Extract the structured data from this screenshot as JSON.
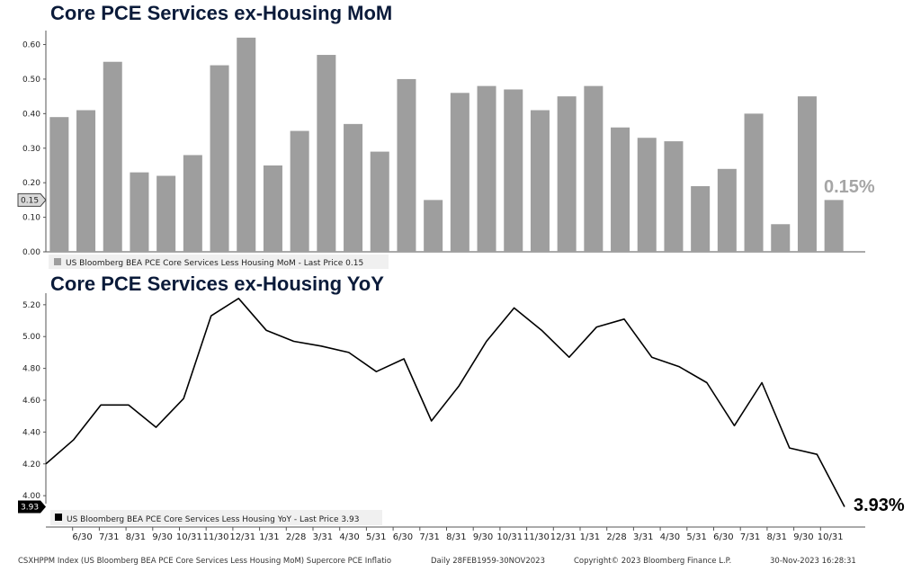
{
  "chart_data": [
    {
      "type": "bar",
      "title": "Core PCE Services ex-Housing MoM",
      "ylim": [
        0,
        0.63
      ],
      "yticks": [
        "0.00",
        "0.10",
        "0.20",
        "0.30",
        "0.40",
        "0.50",
        "0.60"
      ],
      "values": [
        0.39,
        0.41,
        0.55,
        0.23,
        0.22,
        0.28,
        0.54,
        0.62,
        0.25,
        0.35,
        0.57,
        0.37,
        0.29,
        0.5,
        0.15,
        0.46,
        0.48,
        0.47,
        0.41,
        0.45,
        0.48,
        0.36,
        0.33,
        0.32,
        0.19,
        0.24,
        0.4,
        0.08,
        0.45,
        0.15
      ],
      "color": "#9e9e9e",
      "legend": "US Bloomberg BEA PCE Core Services Less Housing MoM - Last Price 0.15",
      "last_price_tag": "0.15",
      "annotation": "0.15%",
      "grid": false
    },
    {
      "type": "line",
      "title": "Core PCE Services ex-Housing YoY",
      "ylim": [
        3.95,
        5.25
      ],
      "yticks": [
        "4.00",
        "4.20",
        "4.40",
        "4.60",
        "4.80",
        "5.00",
        "5.20"
      ],
      "values": [
        4.2,
        4.35,
        4.57,
        4.57,
        4.43,
        4.61,
        5.13,
        5.24,
        5.04,
        4.97,
        4.94,
        4.9,
        4.78,
        4.86,
        4.47,
        4.69,
        4.97,
        5.18,
        5.04,
        4.87,
        5.06,
        5.11,
        4.87,
        4.81,
        4.71,
        4.44,
        4.71,
        4.3,
        4.26,
        3.93
      ],
      "color": "#000000",
      "legend": "US Bloomberg BEA PCE Core Services Less Housing YoY - Last Price 3.93",
      "last_price_tag": "3.93",
      "annotation": "3.93%",
      "grid": false
    }
  ],
  "x_tick_labels": [
    "6/30",
    "7/31",
    "8/31",
    "9/30",
    "10/31",
    "11/30",
    "12/31",
    "1/31",
    "2/28",
    "3/31",
    "4/30",
    "5/31",
    "6/30",
    "7/31",
    "8/31",
    "9/30",
    "10/31",
    "11/30",
    "12/31",
    "1/31",
    "2/28",
    "3/31",
    "4/30",
    "5/31",
    "6/30",
    "7/31",
    "8/31",
    "9/30",
    "10/31"
  ],
  "footer": {
    "index_text": "CSXHPPM Index (US Bloomberg BEA PCE Core Services Less Housing MoM) Supercore PCE Inflatio",
    "range_text": "Daily 28FEB1959-30NOV2023",
    "copyright": "Copyright© 2023 Bloomberg Finance L.P.",
    "timestamp": "30-Nov-2023 16:28:31"
  }
}
